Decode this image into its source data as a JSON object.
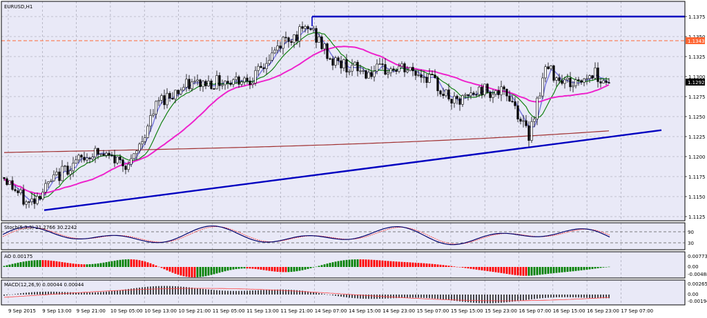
{
  "symbol_title": "EURUSD,H1",
  "price_axis": {
    "ticks": [
      "1.1375",
      "1.1350",
      "1.1325",
      "1.1300",
      "1.1275",
      "1.1250",
      "1.1225",
      "1.1200",
      "1.1175",
      "1.1150",
      "1.1125"
    ],
    "current_price": "1.1292",
    "horizontal_level": "1.1343"
  },
  "time_axis": [
    "9 Sep 2015",
    "9 Sep 13:00",
    "9 Sep 21:00",
    "10 Sep 05:00",
    "10 Sep 13:00",
    "10 Sep 21:00",
    "11 Sep 05:00",
    "11 Sep 13:00",
    "11 Sep 21:00",
    "14 Sep 07:00",
    "14 Sep 15:00",
    "14 Sep 23:00",
    "15 Sep 07:00",
    "15 Sep 15:00",
    "15 Sep 23:00",
    "16 Sep 07:00",
    "16 Sep 15:00",
    "16 Sep 23:00",
    "17 Sep 07:00"
  ],
  "stoch": {
    "label": "Stoch(5,3,3) 21.2766 30.2242",
    "ticks": [
      "90",
      "30"
    ]
  },
  "ao": {
    "label": "AO 0.00175",
    "ticks": [
      "0.00773",
      "0.00",
      "-0.00488"
    ]
  },
  "macd": {
    "label": "MACD(12,26,9) 0.00044 0.00044",
    "ticks": [
      "0.00265",
      "0.00",
      "-0.00194"
    ]
  },
  "colors": {
    "background": "#e9e9f7",
    "grid": "#9a9aa8",
    "candle": "#000000",
    "fast_ma": "#8080e0",
    "mid_ma": "#108010",
    "slow_ma": "#ee22cc",
    "long_ma": "#a03030",
    "trendline": "#0000c0",
    "level": "#ff6633",
    "ao_up": "#008000",
    "ao_down": "#ff0000",
    "stoch_main": "#00006a",
    "stoch_signal": "#ff3333"
  }
}
